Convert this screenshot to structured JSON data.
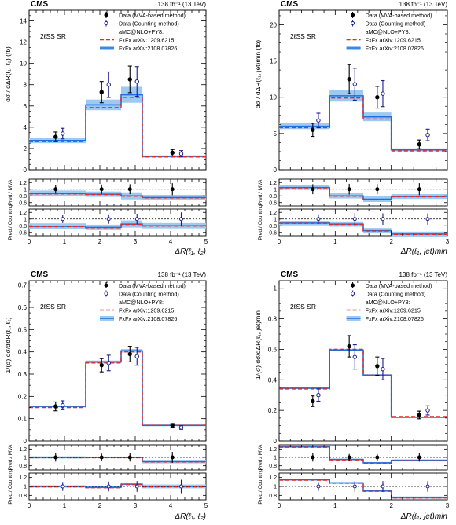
{
  "colors": {
    "data_mva": "#000000",
    "data_counting": "#1a1a8c",
    "fxfx_2009": "#e8271f",
    "fxfx_2108_line": "#1f6fe0",
    "fxfx_2108_band": "#9ccaf3",
    "axis": "#000000"
  },
  "chart_data": [
    {
      "type": "histogram",
      "panel": "top-left",
      "experiment": "CMS",
      "lumi": "138 fb⁻¹ (13 TeV)",
      "region": "2ℓSS SR",
      "ylabel": "dσ / dΔR(ℓ₁, ℓ₂) (fb)",
      "xlabel": "ΔR(ℓ₁, ℓ₂)",
      "xlim": [
        0,
        5
      ],
      "ylim": [
        0,
        15
      ],
      "yticks": [
        "0",
        "2",
        "4",
        "6",
        "8",
        "10",
        "12",
        "14"
      ],
      "xticks": [
        "0",
        "1",
        "2",
        "3",
        "4",
        "5"
      ],
      "legend": {
        "data_mva": "Data (MVA-based method)",
        "data_counting": "Data (Counting method)",
        "generator": "aMC@NLO+PY8:",
        "fxfx_2009": "FxFx arXiv:1209.6215",
        "fxfx_2108": "FxFx arXiv:2108.07826"
      },
      "bins": [
        0,
        1.6,
        2.6,
        3.2,
        5
      ],
      "pred_2009": [
        2.65,
        5.85,
        6.8,
        1.2
      ],
      "pred_2108": [
        2.75,
        6.1,
        7.05,
        1.25
      ],
      "band": [
        0.25,
        0.5,
        0.75,
        0.1
      ],
      "data_mva": {
        "x": [
          0.75,
          2.05,
          2.85,
          4.05
        ],
        "y": [
          3.1,
          7.3,
          8.5,
          1.6
        ],
        "err": [
          0.45,
          1.0,
          1.25,
          0.3
        ]
      },
      "data_counting": {
        "x": [
          0.95,
          2.25,
          3.05,
          4.3
        ],
        "y": [
          3.4,
          8.0,
          8.3,
          1.5
        ],
        "err": [
          0.5,
          1.2,
          1.4,
          0.3
        ]
      },
      "ratio_mva_ylabel": "Pred./ MVA",
      "ratio_counting_ylabel": "Pred./ Counting",
      "ratio_mva": {
        "ylim": [
          0.5,
          1.3
        ],
        "yticks": [
          "0.6",
          "0.8",
          "1",
          "1.2"
        ],
        "pred": [
          0.87,
          0.85,
          0.8,
          0.75
        ],
        "data_err": [
          0.13,
          0.14,
          0.15,
          0.18
        ]
      },
      "ratio_counting": {
        "ylim": [
          0.5,
          1.3
        ],
        "yticks": [
          "0.6",
          "0.8",
          "1",
          "1.2"
        ],
        "pred": [
          0.78,
          0.75,
          0.85,
          0.8
        ],
        "data_err": [
          0.12,
          0.14,
          0.16,
          0.2
        ]
      }
    },
    {
      "type": "histogram",
      "panel": "top-right",
      "experiment": "CMS",
      "lumi": "138 fb⁻¹ (13 TeV)",
      "region": "2ℓSS SR",
      "ylabel": "dσ / dΔR(ℓ₁, jet)min (fb)",
      "xlabel": "ΔR(ℓ₁, jet)min",
      "xlim": [
        0,
        3
      ],
      "ylim": [
        0,
        22
      ],
      "yticks": [
        "0",
        "5",
        "10",
        "15",
        "20"
      ],
      "xticks": [
        "0",
        "1",
        "2",
        "3"
      ],
      "legend": {
        "data_mva": "Data (MVA-based method)",
        "data_counting": "Data (Counting method)",
        "generator": "aMC@NLO+PY8:",
        "fxfx_2009": "FxFx arXiv:1209.6215",
        "fxfx_2108": "FxFx arXiv:2108.07826"
      },
      "bins": [
        0,
        0.9,
        1.5,
        2.0,
        3.0
      ],
      "pred_2009": [
        5.8,
        9.9,
        7.0,
        2.6
      ],
      "pred_2108": [
        6.0,
        10.2,
        7.3,
        2.75
      ],
      "band": [
        0.4,
        0.8,
        0.6,
        0.2
      ],
      "data_mva": {
        "x": [
          0.6,
          1.25,
          1.75,
          2.5
        ],
        "y": [
          5.5,
          12.5,
          10.0,
          3.5
        ],
        "err": [
          0.9,
          2.0,
          1.5,
          0.6
        ]
      },
      "data_counting": {
        "x": [
          0.7,
          1.35,
          1.85,
          2.65
        ],
        "y": [
          6.8,
          11.8,
          10.5,
          4.8
        ],
        "err": [
          1.0,
          2.2,
          1.8,
          0.8
        ]
      },
      "ratio_mva_ylabel": "Pred./ MVA",
      "ratio_counting_ylabel": "Pred./ Counting",
      "ratio_mva": {
        "ylim": [
          0.5,
          1.3
        ],
        "yticks": [
          "0.6",
          "0.8",
          "1",
          "1.2"
        ],
        "pred": [
          1.05,
          0.8,
          0.7,
          0.78
        ],
        "data_err": [
          0.15,
          0.16,
          0.15,
          0.18
        ]
      },
      "ratio_counting": {
        "ylim": [
          0.5,
          1.3
        ],
        "yticks": [
          "0.6",
          "0.8",
          "1",
          "1.2"
        ],
        "pred": [
          0.88,
          0.85,
          0.65,
          0.55
        ],
        "data_err": [
          0.14,
          0.18,
          0.17,
          0.17
        ]
      }
    },
    {
      "type": "histogram",
      "panel": "bottom-left",
      "experiment": "CMS",
      "lumi": "138 fb⁻¹ (13 TeV)",
      "region": "2ℓSS SR",
      "ylabel": "1/(σ) dσ/dΔR(ℓ₁, ℓ₂)",
      "xlabel": "ΔR(ℓ₁, ℓ₂)",
      "xlim": [
        0,
        5
      ],
      "ylim": [
        0,
        0.72
      ],
      "yticks": [
        "0",
        "0.1",
        "0.2",
        "0.3",
        "0.4",
        "0.5",
        "0.6",
        "0.7"
      ],
      "xticks": [
        "0",
        "1",
        "2",
        "3",
        "4",
        "5"
      ],
      "legend": {
        "data_mva": "Data (MVA-based method)",
        "data_counting": "Data (Counting method)",
        "generator": "aMC@NLO+PY8:",
        "fxfx_2009": "FxFx arXiv:1209.6215",
        "fxfx_2108": "FxFx arXiv:2108.07826"
      },
      "bins": [
        0,
        1.6,
        2.6,
        3.2,
        5
      ],
      "pred_2009": [
        0.15,
        0.35,
        0.4,
        0.07
      ],
      "pred_2108": [
        0.155,
        0.355,
        0.405,
        0.07
      ],
      "band": [
        0.004,
        0.006,
        0.008,
        0.003
      ],
      "data_mva": {
        "x": [
          0.75,
          2.05,
          2.85,
          4.05
        ],
        "y": [
          0.155,
          0.34,
          0.39,
          0.07
        ],
        "err": [
          0.02,
          0.03,
          0.035,
          0.008
        ]
      },
      "data_counting": {
        "x": [
          0.95,
          2.25,
          3.05,
          4.3
        ],
        "y": [
          0.16,
          0.35,
          0.38,
          0.06
        ],
        "err": [
          0.02,
          0.035,
          0.04,
          0.008
        ]
      },
      "ratio_mva_ylabel": "Pred./ MVA",
      "ratio_counting_ylabel": "Pred./ Counting",
      "ratio_mva": {
        "ylim": [
          0.7,
          1.3
        ],
        "yticks": [
          "0.8",
          "1",
          "1.2"
        ],
        "pred": [
          1.0,
          1.0,
          1.0,
          0.9
        ],
        "data_err": [
          0.1,
          0.09,
          0.1,
          0.13
        ]
      },
      "ratio_counting": {
        "ylim": [
          0.7,
          1.3
        ],
        "yticks": [
          "0.8",
          "1",
          "1.2"
        ],
        "pred": [
          1.0,
          0.98,
          1.05,
          1.0
        ],
        "data_err": [
          0.1,
          0.11,
          0.12,
          0.15
        ]
      }
    },
    {
      "type": "histogram",
      "panel": "bottom-right",
      "experiment": "CMS",
      "lumi": "138 fb⁻¹ (13 TeV)",
      "region": "2ℓSS SR",
      "ylabel": "1/(σ) dσ/dΔR(ℓ₁, jet)min",
      "xlabel": "ΔR(ℓ₁, jet)min",
      "xlim": [
        0,
        3
      ],
      "ylim": [
        0,
        1.05
      ],
      "yticks": [
        "0",
        "0.2",
        "0.4",
        "0.6",
        "0.8",
        "1"
      ],
      "xticks": [
        "0",
        "1",
        "2",
        "3"
      ],
      "legend": {
        "data_mva": "Data (MVA-based method)",
        "data_counting": "Data (Counting method)",
        "generator": "aMC@NLO+PY8:",
        "fxfx_2009": "FxFx arXiv:1209.6215",
        "fxfx_2108": "FxFx arXiv:2108.07826"
      },
      "bins": [
        0,
        0.9,
        1.5,
        2.0,
        3.0
      ],
      "pred_2009": [
        0.34,
        0.6,
        0.43,
        0.16
      ],
      "pred_2108": [
        0.345,
        0.595,
        0.43,
        0.155
      ],
      "band": [
        0.006,
        0.008,
        0.007,
        0.004
      ],
      "data_mva": {
        "x": [
          0.6,
          1.25,
          1.75,
          2.5
        ],
        "y": [
          0.26,
          0.62,
          0.49,
          0.17
        ],
        "err": [
          0.035,
          0.07,
          0.06,
          0.025
        ]
      },
      "data_counting": {
        "x": [
          0.7,
          1.35,
          1.85,
          2.65
        ],
        "y": [
          0.3,
          0.55,
          0.47,
          0.2
        ],
        "err": [
          0.04,
          0.08,
          0.07,
          0.03
        ]
      },
      "ratio_mva_ylabel": "Pred./ MVA",
      "ratio_counting_ylabel": "Pred./ Counting",
      "ratio_mva": {
        "ylim": [
          0.7,
          1.3
        ],
        "yticks": [
          "0.8",
          "1",
          "1.2"
        ],
        "pred": [
          1.25,
          0.95,
          0.87,
          0.93
        ],
        "data_err": [
          0.1,
          0.08,
          0.08,
          0.1
        ]
      },
      "ratio_counting": {
        "ylim": [
          0.7,
          1.3
        ],
        "yticks": [
          "0.8",
          "1",
          "1.2"
        ],
        "pred": [
          1.15,
          1.08,
          0.9,
          0.75
        ],
        "data_err": [
          0.1,
          0.12,
          0.12,
          0.12
        ]
      }
    }
  ]
}
